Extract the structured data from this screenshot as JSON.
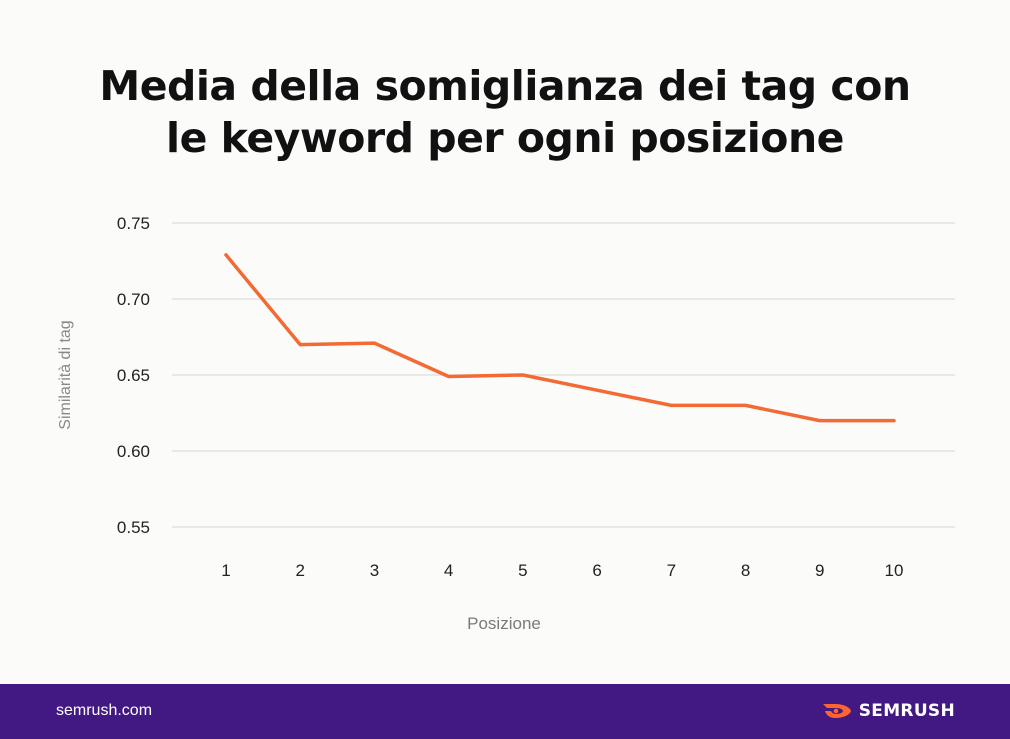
{
  "chart_data": {
    "type": "line",
    "title_line1": "Media della somiglianza dei tag con",
    "title_line2": "le keyword per ogni posizione",
    "xlabel": "Posizione",
    "ylabel": "Similarità di tag",
    "categories": [
      "1",
      "2",
      "3",
      "4",
      "5",
      "6",
      "7",
      "8",
      "9",
      "10"
    ],
    "series": [
      {
        "name": "Similarità di tag",
        "values": [
          0.729,
          0.67,
          0.671,
          0.649,
          0.65,
          0.64,
          0.63,
          0.63,
          0.62,
          0.62
        ]
      }
    ],
    "yticks": [
      "0.75",
      "0.70",
      "0.65",
      "0.60",
      "0.55"
    ],
    "ylim": [
      0.55,
      0.75
    ],
    "grid": true,
    "line_color": "#f26a34"
  },
  "footer": {
    "site": "semrush.com",
    "brand": "SEMRUSH",
    "background": "#421983",
    "brand_color": "#ff642d"
  }
}
